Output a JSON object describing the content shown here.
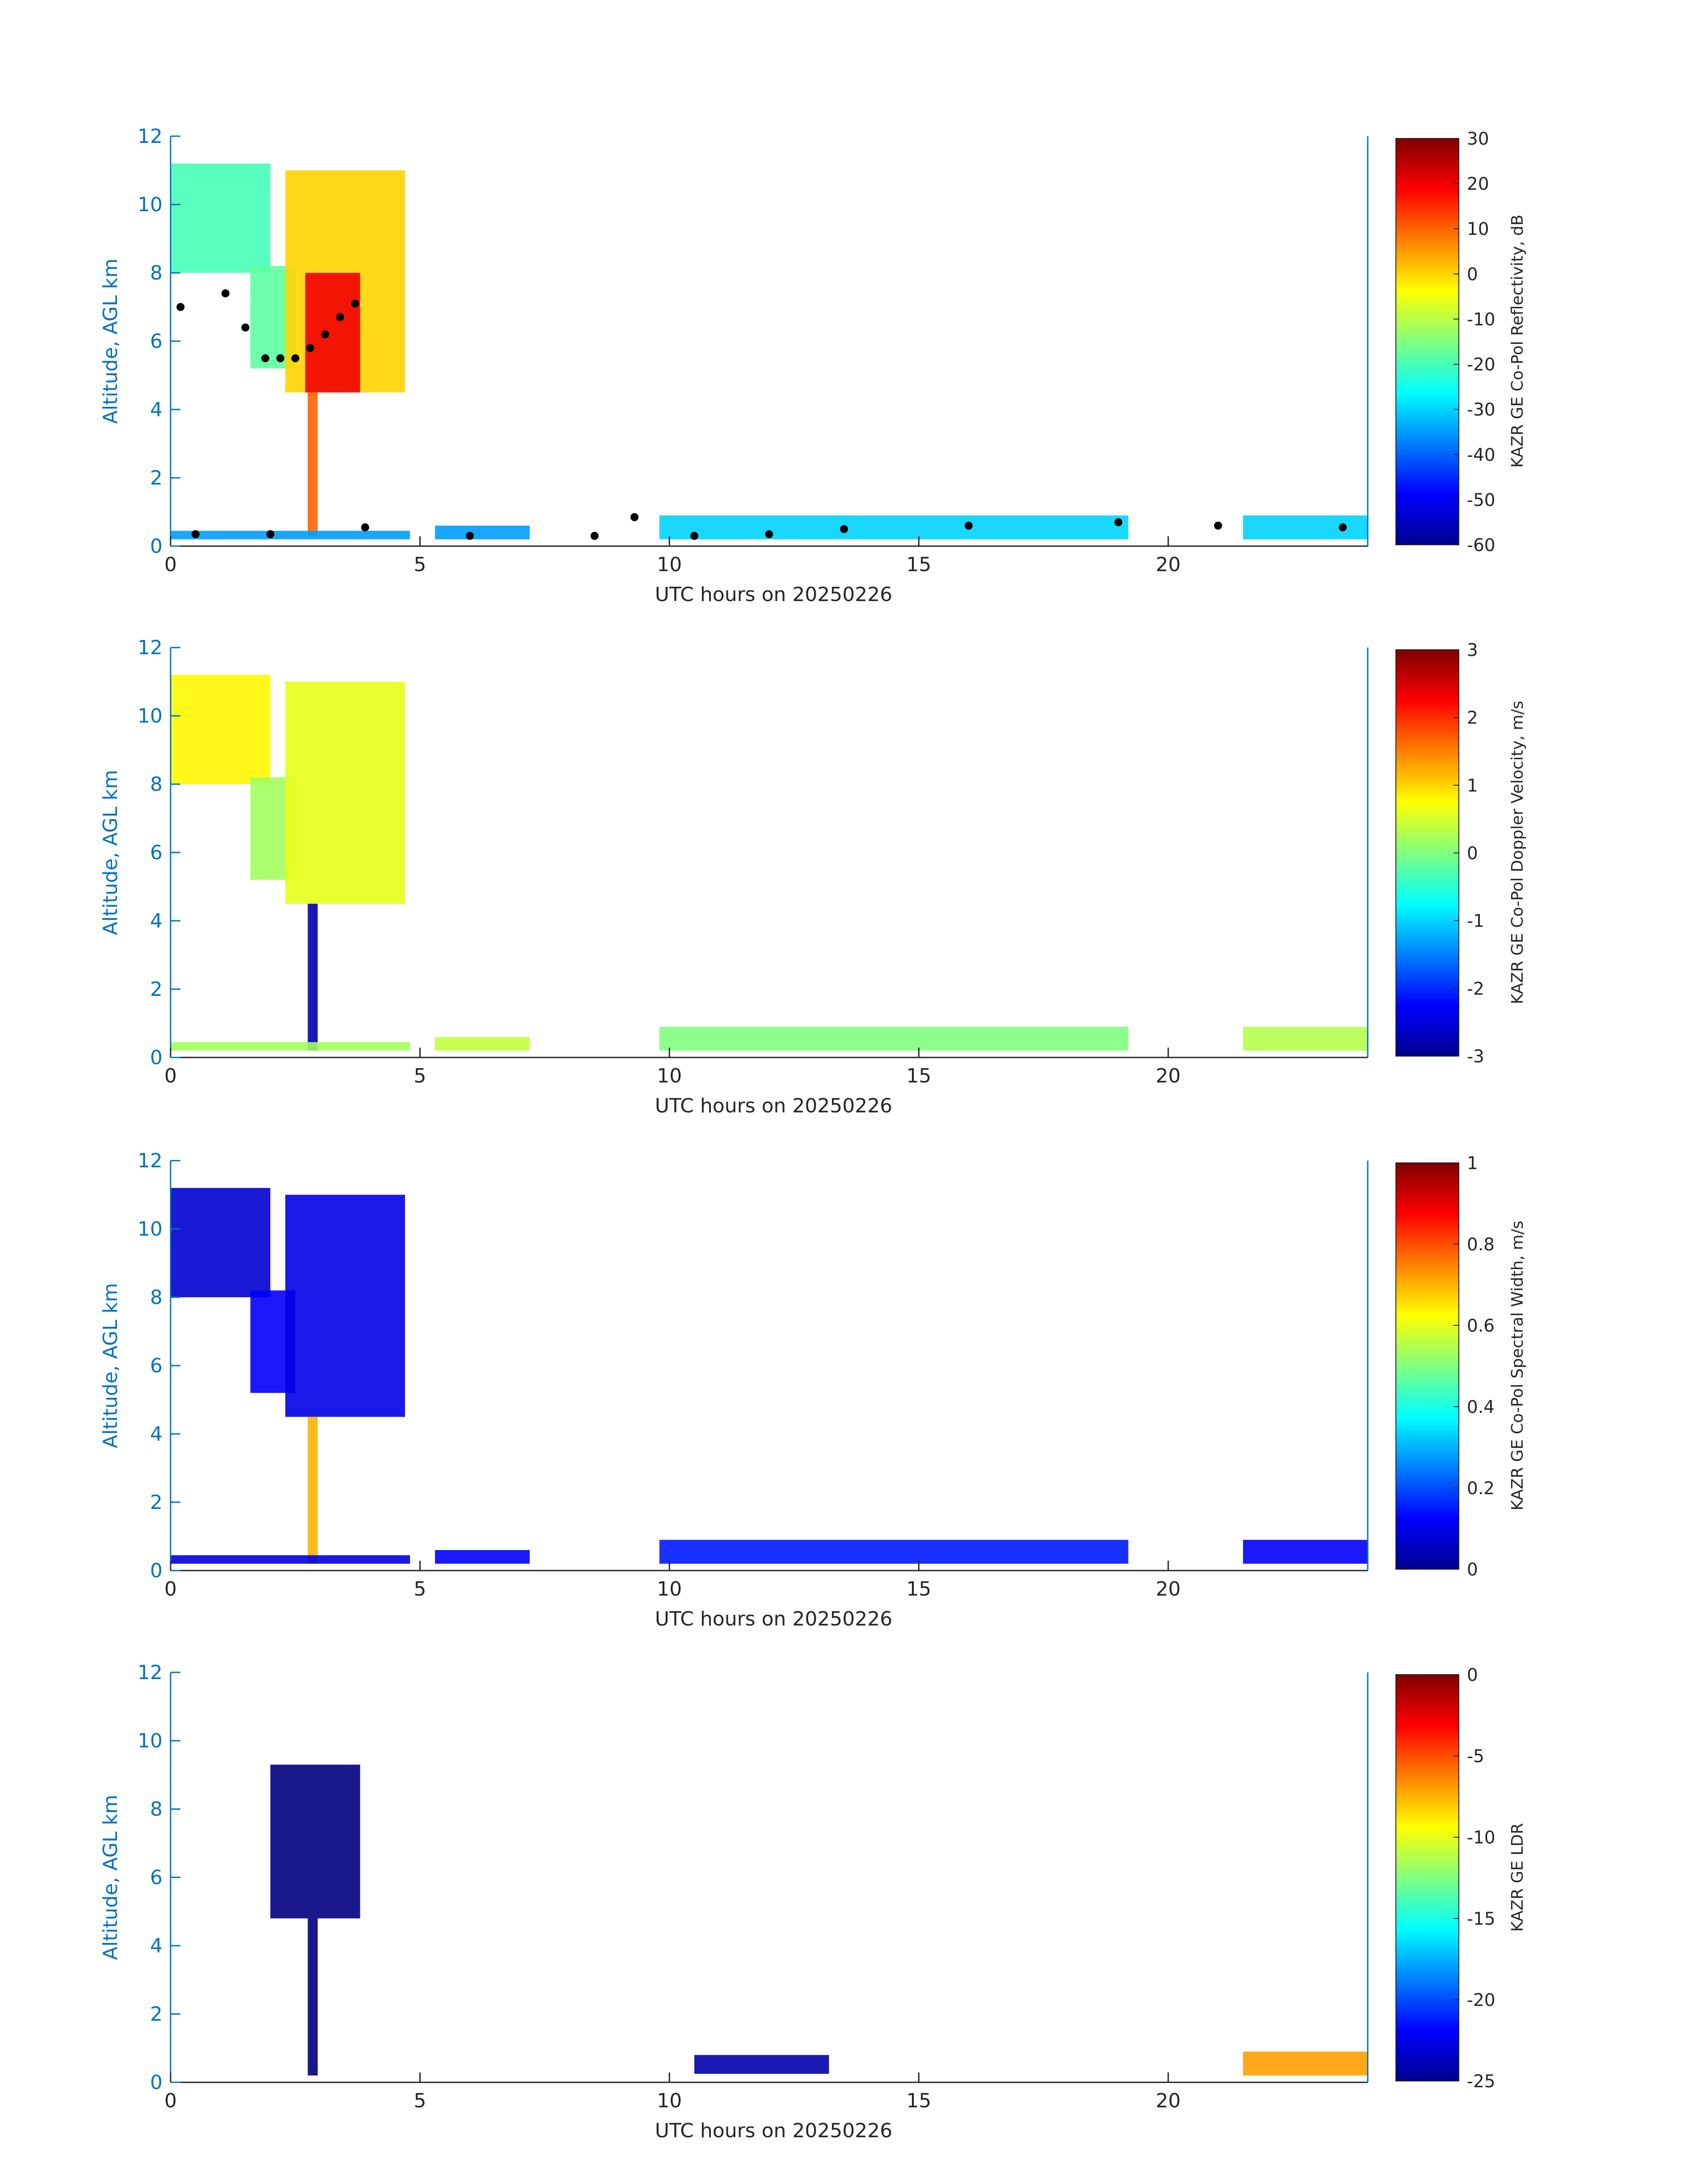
{
  "colors": {
    "axis_left": "#0072BD",
    "axis_bottom": "#262626",
    "colormap": "jet",
    "melting_layer_marker": "#000000"
  },
  "chart_data": [
    {
      "type": "heatmap",
      "xlabel": "UTC hours on 20250226",
      "ylabel": "Altitude, AGL km",
      "xlim": [
        0,
        24
      ],
      "ylim": [
        0,
        12
      ],
      "xticks": [
        "0",
        "5",
        "10",
        "15",
        "20"
      ],
      "yticks": [
        "0",
        "2",
        "4",
        "6",
        "8",
        "10",
        "12"
      ],
      "colorbar": {
        "label": "KAZR GE Co-Pol Reflectivity, dB",
        "ticks": [
          "30",
          "20",
          "10",
          "0",
          "-10",
          "-20",
          "-30",
          "-40",
          "-50",
          "-60"
        ],
        "range": [
          -60,
          30
        ]
      },
      "features": [
        {
          "t0": 0.0,
          "t1": 2.0,
          "z0": 8.0,
          "z1": 11.2,
          "value": -20
        },
        {
          "t0": 1.6,
          "t1": 2.5,
          "z0": 5.2,
          "z1": 8.2,
          "value": -18
        },
        {
          "t0": 2.3,
          "t1": 4.7,
          "z0": 4.5,
          "z1": 11.0,
          "value": 0
        },
        {
          "t0": 2.7,
          "t1": 3.8,
          "z0": 4.5,
          "z1": 8.0,
          "value": 20
        },
        {
          "t0": 2.75,
          "t1": 2.95,
          "z0": 0.3,
          "z1": 4.5,
          "value": 10
        },
        {
          "t0": 0.0,
          "t1": 4.8,
          "z0": 0.2,
          "z1": 0.45,
          "value": -35
        },
        {
          "t0": 5.3,
          "t1": 7.2,
          "z0": 0.2,
          "z1": 0.6,
          "value": -35
        },
        {
          "t0": 9.8,
          "t1": 19.2,
          "z0": 0.2,
          "z1": 0.9,
          "value": -30
        },
        {
          "t0": 21.5,
          "t1": 24.0,
          "z0": 0.2,
          "z1": 0.9,
          "value": -30
        }
      ],
      "melting_layer": [
        {
          "t": 0.2,
          "z": 7.0
        },
        {
          "t": 1.1,
          "z": 7.4
        },
        {
          "t": 1.5,
          "z": 6.4
        },
        {
          "t": 1.9,
          "z": 5.5
        },
        {
          "t": 2.2,
          "z": 5.5
        },
        {
          "t": 2.5,
          "z": 5.5
        },
        {
          "t": 2.8,
          "z": 5.8
        },
        {
          "t": 3.1,
          "z": 6.2
        },
        {
          "t": 3.4,
          "z": 6.7
        },
        {
          "t": 3.7,
          "z": 7.1
        },
        {
          "t": 0.5,
          "z": 0.35
        },
        {
          "t": 2.0,
          "z": 0.35
        },
        {
          "t": 3.9,
          "z": 0.55
        },
        {
          "t": 6.0,
          "z": 0.3
        },
        {
          "t": 8.5,
          "z": 0.3
        },
        {
          "t": 9.3,
          "z": 0.85
        },
        {
          "t": 10.5,
          "z": 0.3
        },
        {
          "t": 12.0,
          "z": 0.35
        },
        {
          "t": 13.5,
          "z": 0.5
        },
        {
          "t": 16.0,
          "z": 0.6
        },
        {
          "t": 19.0,
          "z": 0.7
        },
        {
          "t": 21.0,
          "z": 0.6
        },
        {
          "t": 23.5,
          "z": 0.55
        }
      ]
    },
    {
      "type": "heatmap",
      "xlabel": "UTC hours on 20250226",
      "ylabel": "Altitude, AGL km",
      "xlim": [
        0,
        24
      ],
      "ylim": [
        0,
        12
      ],
      "xticks": [
        "0",
        "5",
        "10",
        "15",
        "20"
      ],
      "yticks": [
        "0",
        "2",
        "4",
        "6",
        "8",
        "10",
        "12"
      ],
      "colorbar": {
        "label": "KAZR GE Co-Pol Doppler Velocity, m/s",
        "ticks": [
          "3",
          "2",
          "1",
          "0",
          "-1",
          "-2",
          "-3"
        ],
        "range": [
          -3,
          3
        ]
      },
      "features": [
        {
          "t0": 0.0,
          "t1": 2.0,
          "z0": 8.0,
          "z1": 11.2,
          "value": 0.8
        },
        {
          "t0": 1.6,
          "t1": 2.5,
          "z0": 5.2,
          "z1": 8.2,
          "value": 0.2
        },
        {
          "t0": 2.3,
          "t1": 4.7,
          "z0": 4.5,
          "z1": 11.0,
          "value": 0.6
        },
        {
          "t0": 2.75,
          "t1": 2.95,
          "z0": 0.2,
          "z1": 4.5,
          "value": -2.7
        },
        {
          "t0": 0.0,
          "t1": 4.8,
          "z0": 0.2,
          "z1": 0.45,
          "value": 0.2
        },
        {
          "t0": 5.3,
          "t1": 7.2,
          "z0": 0.2,
          "z1": 0.6,
          "value": 0.4
        },
        {
          "t0": 9.8,
          "t1": 19.2,
          "z0": 0.2,
          "z1": 0.9,
          "value": 0.0
        },
        {
          "t0": 21.5,
          "t1": 24.0,
          "z0": 0.2,
          "z1": 0.9,
          "value": 0.3
        }
      ]
    },
    {
      "type": "heatmap",
      "xlabel": "UTC hours on 20250226",
      "ylabel": "Altitude, AGL km",
      "xlim": [
        0,
        24
      ],
      "ylim": [
        0,
        12
      ],
      "xticks": [
        "0",
        "5",
        "10",
        "15",
        "20"
      ],
      "yticks": [
        "0",
        "2",
        "4",
        "6",
        "8",
        "10",
        "12"
      ],
      "colorbar": {
        "label": "KAZR GE Co-Pol Spectral Width, m/s",
        "ticks": [
          "1",
          "0.8",
          "0.6",
          "0.4",
          "0.2",
          "0"
        ],
        "range": [
          0,
          1
        ]
      },
      "features": [
        {
          "t0": 0.0,
          "t1": 2.0,
          "z0": 8.0,
          "z1": 11.2,
          "value": 0.08
        },
        {
          "t0": 1.6,
          "t1": 2.5,
          "z0": 5.2,
          "z1": 8.2,
          "value": 0.12
        },
        {
          "t0": 2.3,
          "t1": 4.7,
          "z0": 4.5,
          "z1": 11.0,
          "value": 0.1
        },
        {
          "t0": 2.75,
          "t1": 2.95,
          "z0": 0.2,
          "z1": 4.5,
          "value": 0.7
        },
        {
          "t0": 0.0,
          "t1": 4.8,
          "z0": 0.2,
          "z1": 0.45,
          "value": 0.1
        },
        {
          "t0": 5.3,
          "t1": 7.2,
          "z0": 0.2,
          "z1": 0.6,
          "value": 0.12
        },
        {
          "t0": 9.8,
          "t1": 19.2,
          "z0": 0.2,
          "z1": 0.9,
          "value": 0.15
        },
        {
          "t0": 21.5,
          "t1": 24.0,
          "z0": 0.2,
          "z1": 0.9,
          "value": 0.12
        }
      ]
    },
    {
      "type": "heatmap",
      "xlabel": "UTC hours on 20250226",
      "ylabel": "Altitude, AGL km",
      "xlim": [
        0,
        24
      ],
      "ylim": [
        0,
        12
      ],
      "xticks": [
        "0",
        "5",
        "10",
        "15",
        "20"
      ],
      "yticks": [
        "0",
        "2",
        "4",
        "6",
        "8",
        "10",
        "12"
      ],
      "colorbar": {
        "label": "KAZR GE LDR",
        "ticks": [
          "0",
          "-5",
          "-10",
          "-15",
          "-20",
          "-25"
        ],
        "range": [
          -25,
          0
        ]
      },
      "features": [
        {
          "t0": 2.0,
          "t1": 3.8,
          "z0": 4.8,
          "z1": 9.3,
          "value": -25
        },
        {
          "t0": 2.75,
          "t1": 2.95,
          "z0": 0.2,
          "z1": 4.8,
          "value": -25
        },
        {
          "t0": 10.5,
          "t1": 13.2,
          "z0": 0.25,
          "z1": 0.8,
          "value": -24
        },
        {
          "t0": 21.5,
          "t1": 24.0,
          "z0": 0.2,
          "z1": 0.9,
          "value": -7
        }
      ]
    }
  ]
}
